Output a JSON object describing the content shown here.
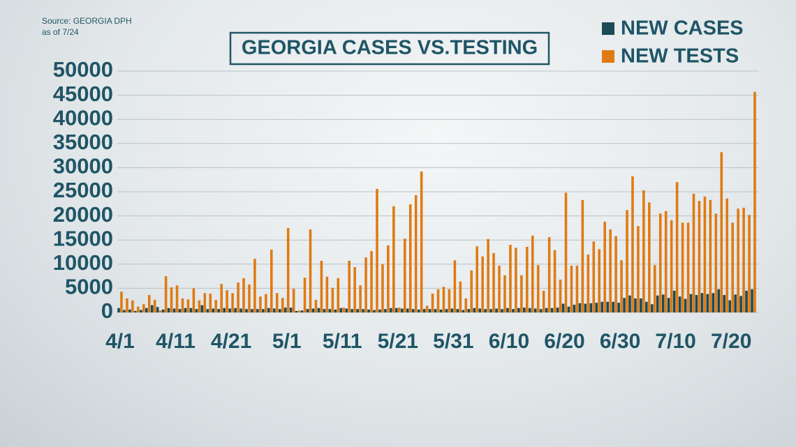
{
  "chart_data": {
    "type": "bar",
    "title": "GEORGIA CASES VS.TESTING",
    "source": "Source: GEORGIA DPH",
    "date_note": "as of 7/24",
    "legend": "top-right",
    "grid": true,
    "categories": [
      "4/1",
      null,
      null,
      null,
      null,
      null,
      null,
      null,
      null,
      null,
      "4/11",
      null,
      null,
      null,
      null,
      null,
      null,
      null,
      null,
      null,
      "4/21",
      null,
      null,
      null,
      null,
      null,
      null,
      null,
      null,
      null,
      "5/1",
      null,
      null,
      null,
      null,
      null,
      null,
      null,
      null,
      null,
      "5/11",
      null,
      null,
      null,
      null,
      null,
      null,
      null,
      null,
      null,
      "5/21",
      null,
      null,
      null,
      null,
      null,
      null,
      null,
      null,
      null,
      "5/31",
      null,
      null,
      null,
      null,
      null,
      null,
      null,
      null,
      null,
      "6/10",
      null,
      null,
      null,
      null,
      null,
      null,
      null,
      null,
      null,
      "6/20",
      null,
      null,
      null,
      null,
      null,
      null,
      null,
      null,
      null,
      "6/30",
      null,
      null,
      null,
      null,
      null,
      null,
      null,
      null,
      null,
      "7/10",
      null,
      null,
      null,
      null,
      null,
      null,
      null,
      null,
      null,
      "7/20",
      null,
      null,
      null,
      null
    ],
    "series": [
      {
        "name": "NEW CASES",
        "color": "#1c4a55",
        "values": [
          900,
          500,
          600,
          300,
          500,
          900,
          1500,
          1100,
          600,
          900,
          800,
          700,
          900,
          900,
          700,
          1500,
          700,
          800,
          700,
          900,
          800,
          900,
          800,
          700,
          700,
          700,
          700,
          900,
          800,
          700,
          1000,
          1000,
          300,
          400,
          700,
          800,
          900,
          700,
          700,
          600,
          900,
          800,
          700,
          700,
          700,
          600,
          500,
          600,
          700,
          900,
          900,
          800,
          800,
          700,
          600,
          700,
          700,
          700,
          600,
          700,
          800,
          700,
          500,
          700,
          900,
          800,
          700,
          700,
          800,
          700,
          900,
          700,
          900,
          1000,
          900,
          800,
          700,
          900,
          900,
          1000,
          1800,
          1200,
          1600,
          1900,
          1800,
          1900,
          2000,
          2200,
          2200,
          2200,
          2000,
          3000,
          3500,
          2900,
          2900,
          2200,
          1700,
          3500,
          3700,
          3000,
          4500,
          3300,
          2800,
          3800,
          3600,
          4000,
          3800,
          4000,
          4800,
          3600,
          2500,
          3700,
          3400,
          4500,
          4800
        ]
      },
      {
        "name": "NEW TESTS",
        "color": "#e07a12",
        "values": [
          4300,
          2900,
          2500,
          1200,
          1700,
          3600,
          2600,
          400,
          7500,
          5200,
          5600,
          2900,
          2700,
          5000,
          2500,
          4000,
          3900,
          2600,
          5900,
          4600,
          4000,
          6200,
          7100,
          5800,
          11100,
          3300,
          3800,
          13000,
          4000,
          3000,
          17500,
          4900,
          400,
          7200,
          17200,
          2600,
          10700,
          7400,
          5100,
          7100,
          1000,
          10700,
          9400,
          5600,
          11400,
          12700,
          25600,
          10000,
          13900,
          22000,
          1000,
          15300,
          22400,
          24300,
          29200,
          1400,
          3900,
          4800,
          5300,
          4800,
          10800,
          6400,
          2900,
          8700,
          13700,
          11600,
          15200,
          12300,
          9700,
          7700,
          14000,
          13400,
          7700,
          13600,
          15900,
          9800,
          4500,
          15600,
          12900,
          6800,
          24800,
          9700,
          9700,
          23300,
          12000,
          14700,
          13100,
          18800,
          17200,
          15800,
          10800,
          21200,
          28200,
          17900,
          25300,
          22800,
          9800,
          20500,
          21000,
          19100,
          27000,
          18600,
          18600,
          24600,
          23100,
          24000,
          23300,
          20500,
          33200,
          23600,
          18600,
          21500,
          21700,
          20200,
          45700
        ]
      }
    ],
    "ylim": [
      0,
      50000
    ],
    "yticks": [
      0,
      5000,
      10000,
      15000,
      20000,
      25000,
      30000,
      35000,
      40000,
      45000,
      50000
    ]
  }
}
